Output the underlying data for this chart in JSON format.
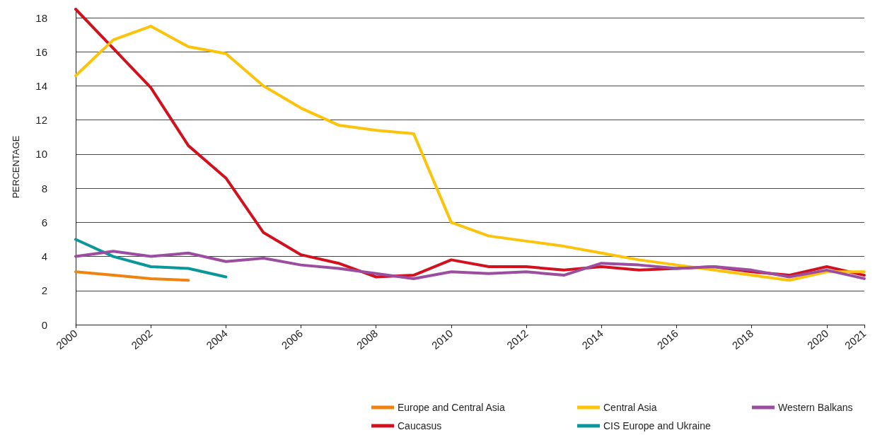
{
  "chart_data": {
    "type": "line",
    "ylabel": "PERCENTAGE",
    "x": [
      2000,
      2001,
      2002,
      2003,
      2004,
      2005,
      2006,
      2007,
      2008,
      2009,
      2010,
      2011,
      2012,
      2013,
      2014,
      2015,
      2016,
      2017,
      2018,
      2019,
      2020,
      2021
    ],
    "series": [
      {
        "name": "Europe and Central Asia",
        "color": "#f0820f",
        "values": [
          3.1,
          2.9,
          2.7,
          2.6,
          null,
          null,
          null,
          null,
          null,
          null,
          null,
          null,
          null,
          null,
          null,
          null,
          null,
          null,
          null,
          null,
          null,
          null
        ]
      },
      {
        "name": "Caucasus",
        "color": "#d2111f",
        "values": [
          18.5,
          16.2,
          13.9,
          10.5,
          8.6,
          5.4,
          4.1,
          3.6,
          2.8,
          2.9,
          3.8,
          3.4,
          3.4,
          3.2,
          3.4,
          3.2,
          3.3,
          3.4,
          3.1,
          2.9,
          3.4,
          2.9
        ]
      },
      {
        "name": "Central Asia",
        "color": "#fcc30b",
        "values": [
          14.6,
          16.7,
          17.5,
          16.3,
          15.9,
          14.0,
          12.7,
          11.7,
          11.4,
          11.2,
          6.0,
          5.2,
          4.9,
          4.6,
          4.2,
          3.8,
          3.5,
          3.2,
          2.9,
          2.6,
          3.1,
          3.1
        ]
      },
      {
        "name": "CIS Europe and Ukraine",
        "color": "#0a979a",
        "values": [
          5.0,
          4.0,
          3.4,
          3.3,
          2.8,
          null,
          null,
          null,
          null,
          null,
          null,
          null,
          null,
          null,
          null,
          null,
          null,
          null,
          null,
          null,
          null,
          null
        ]
      },
      {
        "name": "Western Balkans",
        "color": "#9b4e9f",
        "values": [
          4.0,
          4.3,
          4.0,
          4.2,
          3.7,
          3.9,
          3.5,
          3.3,
          3.0,
          2.7,
          3.1,
          3.0,
          3.1,
          2.9,
          3.6,
          3.5,
          3.3,
          3.4,
          3.2,
          2.8,
          3.2,
          2.7
        ]
      }
    ],
    "xlim": [
      2000,
      2021
    ],
    "xticks": [
      2000,
      2002,
      2004,
      2006,
      2008,
      2010,
      2012,
      2014,
      2016,
      2018,
      2020,
      2021
    ],
    "ylim": [
      0,
      18.5
    ],
    "yticks": [
      0,
      2,
      4,
      6,
      8,
      10,
      12,
      14,
      16,
      18
    ],
    "grid": "y",
    "legend": "bottom right",
    "marker": "none",
    "line_style": "solid"
  }
}
